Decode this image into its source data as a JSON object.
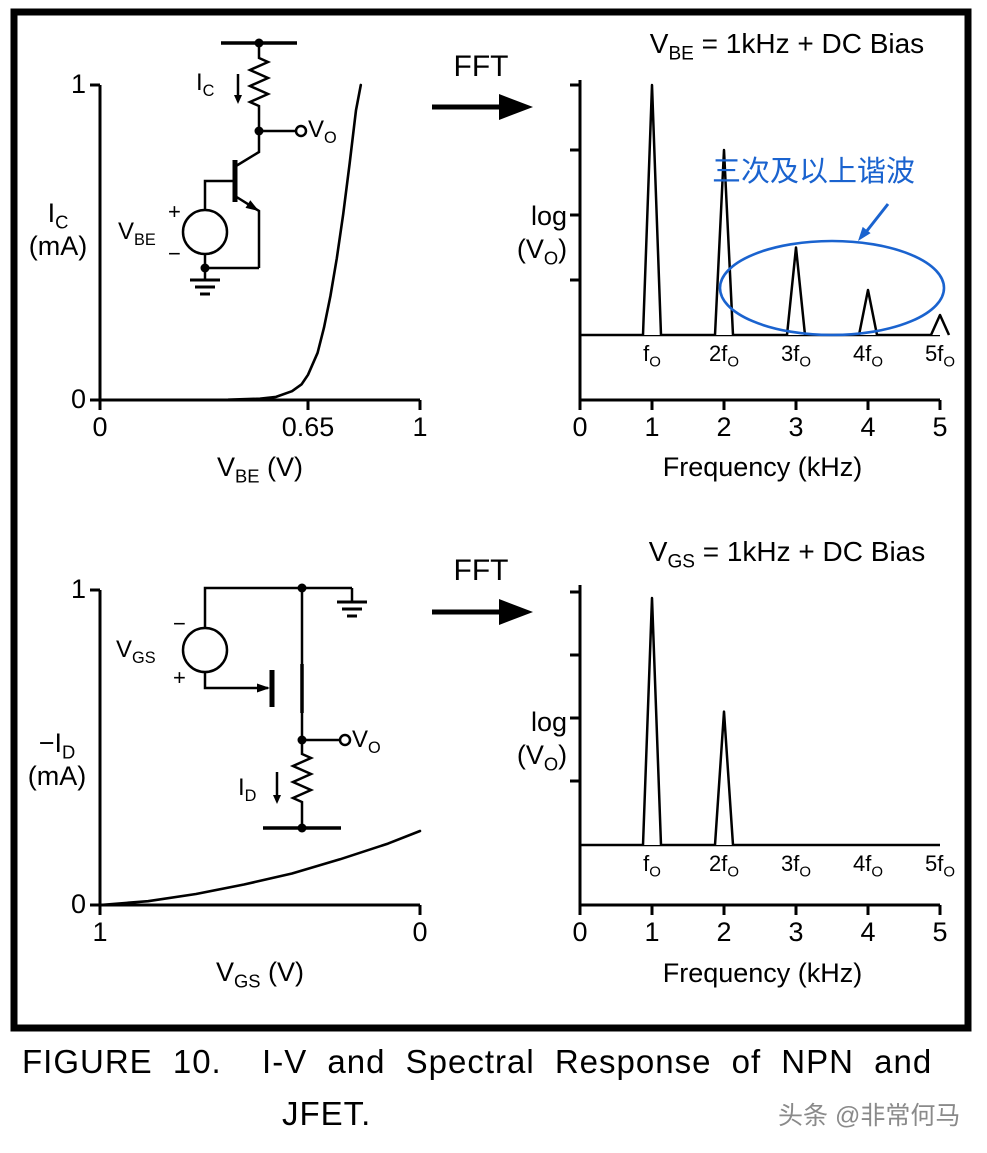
{
  "labels": {
    "fft_top": "FFT",
    "fft_bottom": "FFT"
  },
  "circuits": {
    "npn": {
      "ic": "I[C]",
      "vo": "V[O]",
      "vbe": "V[BE]",
      "plus": "+",
      "minus": "−"
    },
    "jfet": {
      "vgs": "V[GS]",
      "vo": "V[O]",
      "id": "I[D]",
      "plus": "+",
      "minus": "−"
    }
  },
  "chart_data": [
    {
      "id": "npn_iv",
      "type": "line",
      "title": "",
      "xlabel": "V[BE] (V)",
      "ylabel_lines": [
        "I[C]",
        "(mA)"
      ],
      "xlim": [
        0,
        1
      ],
      "ylim": [
        0,
        1
      ],
      "x_ticks": [
        {
          "v": 0,
          "label": "0"
        },
        {
          "v": 0.65,
          "label": "0.65"
        },
        {
          "v": 1,
          "label": "1"
        }
      ],
      "y_ticks": [
        {
          "v": 0,
          "label": "0"
        },
        {
          "v": 1,
          "label": "1"
        }
      ],
      "points": [
        [
          0.02,
          0
        ],
        [
          0.4,
          0.001
        ],
        [
          0.5,
          0.004
        ],
        [
          0.55,
          0.01
        ],
        [
          0.6,
          0.028
        ],
        [
          0.63,
          0.05
        ],
        [
          0.65,
          0.08
        ],
        [
          0.68,
          0.15
        ],
        [
          0.7,
          0.23
        ],
        [
          0.72,
          0.33
        ],
        [
          0.74,
          0.45
        ],
        [
          0.76,
          0.59
        ],
        [
          0.78,
          0.75
        ],
        [
          0.8,
          0.92
        ],
        [
          0.815,
          1.0
        ]
      ]
    },
    {
      "id": "npn_fft",
      "type": "spectrum",
      "title": "V[BE] = 1kHz + DC Bias",
      "xlabel": "Frequency (kHz)",
      "ylabel_lines": [
        "log",
        "(V[O])"
      ],
      "xlim": [
        0,
        5
      ],
      "x_ticks": [
        "0",
        "1",
        "2",
        "3",
        "4",
        "5"
      ],
      "peaks": [
        {
          "f": 1,
          "amp": 1.0,
          "label": "f[O]"
        },
        {
          "f": 2,
          "amp": 0.74,
          "label": "2f[O]"
        },
        {
          "f": 3,
          "amp": 0.35,
          "label": "3f[O]"
        },
        {
          "f": 4,
          "amp": 0.18,
          "label": "4f[O]"
        },
        {
          "f": 5,
          "amp": 0.08,
          "label": "5f[O]"
        }
      ],
      "annotation": {
        "text": "三次及以上谐波",
        "color": "#1a63cf"
      }
    },
    {
      "id": "jfet_iv",
      "type": "line",
      "title": "",
      "xlabel": "V[GS] (V)",
      "ylabel_lines": [
        "−I[D]",
        "(mA)"
      ],
      "xlim": [
        1,
        0
      ],
      "ylim": [
        0,
        1
      ],
      "x_ticks": [
        {
          "v": 1,
          "label": "1"
        },
        {
          "v": 0,
          "label": "0"
        }
      ],
      "y_ticks": [
        {
          "v": 0,
          "label": "0"
        },
        {
          "v": 1,
          "label": "1"
        }
      ],
      "points": [
        [
          1,
          0
        ],
        [
          0.85,
          0.012
        ],
        [
          0.7,
          0.035
        ],
        [
          0.55,
          0.065
        ],
        [
          0.4,
          0.1
        ],
        [
          0.25,
          0.145
        ],
        [
          0.1,
          0.195
        ],
        [
          0,
          0.235
        ]
      ]
    },
    {
      "id": "jfet_fft",
      "type": "spectrum",
      "title": "V[GS] = 1kHz + DC Bias",
      "xlabel": "Frequency (kHz)",
      "ylabel_lines": [
        "log",
        "(V[O])"
      ],
      "xlim": [
        0,
        5
      ],
      "x_ticks": [
        "0",
        "1",
        "2",
        "3",
        "4",
        "5"
      ],
      "peaks": [
        {
          "f": 1,
          "amp": 1.0,
          "label": "f[O]"
        },
        {
          "f": 2,
          "amp": 0.54,
          "label": "2f[O]"
        },
        {
          "f": 3,
          "amp": 0,
          "label": "3f[O]"
        },
        {
          "f": 4,
          "amp": 0,
          "label": "4f[O]"
        },
        {
          "f": 5,
          "amp": 0,
          "label": "5f[O]"
        }
      ]
    }
  ],
  "caption": {
    "line1": "FIGURE 10.  I-V and Spectral Response of NPN and",
    "line2": "JFET."
  },
  "watermark": "头条 @非常何马"
}
